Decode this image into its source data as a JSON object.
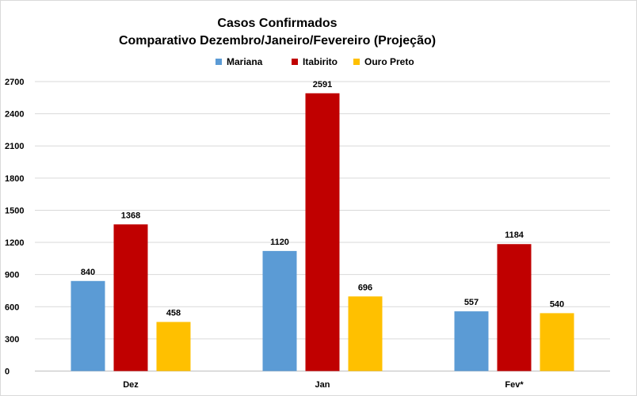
{
  "chart_data": {
    "type": "bar",
    "title": "Casos Confirmados",
    "subtitle": "Comparativo Dezembro/Janeiro/Fevereiro (Projeção)",
    "categories": [
      "Dez",
      "Jan",
      "Fev*"
    ],
    "series": [
      {
        "name": "Mariana",
        "color": "#5b9bd5",
        "values": [
          840,
          1120,
          557
        ]
      },
      {
        "name": "Itabirito",
        "color": "#c00000",
        "values": [
          1368,
          2591,
          1184
        ]
      },
      {
        "name": "Ouro Preto",
        "color": "#ffc000",
        "values": [
          458,
          696,
          540
        ]
      }
    ],
    "ylim": [
      0,
      2700
    ],
    "yticks": [
      0,
      300,
      600,
      900,
      1200,
      1500,
      1800,
      2100,
      2400,
      2700
    ],
    "grid": true,
    "legend": "top",
    "data_labels": true
  }
}
